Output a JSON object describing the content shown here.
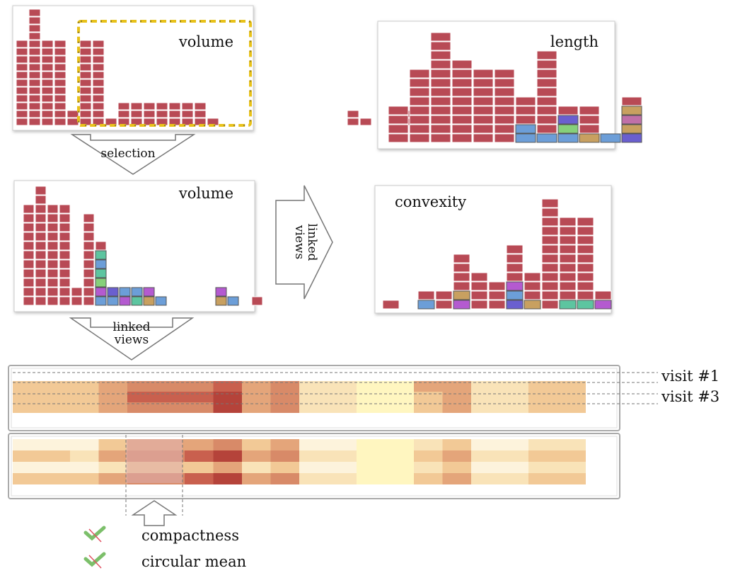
{
  "panels": {
    "top_left": {
      "title": "volume"
    },
    "middle_left": {
      "title": "volume"
    },
    "top_right": {
      "title": "length"
    },
    "middle_right": {
      "title": "convexity"
    }
  },
  "arrows": {
    "selection": "selection",
    "linked_views_right": [
      "linked",
      "views"
    ],
    "linked_views_down": [
      "linked",
      "views"
    ]
  },
  "heatmap": {
    "visit_labels": [
      "visit #1",
      "visit #3"
    ]
  },
  "legend": {
    "items": [
      "compactness",
      "circular mean"
    ]
  },
  "colors": {
    "bar_red": "#b84a55",
    "selection_border": "#e8c21a",
    "category_colors": [
      "#5dc5a0",
      "#6c9ed8",
      "#6a5fcf",
      "#b45ad0",
      "#c8a060",
      "#86d07a",
      "#c070a8"
    ]
  }
}
